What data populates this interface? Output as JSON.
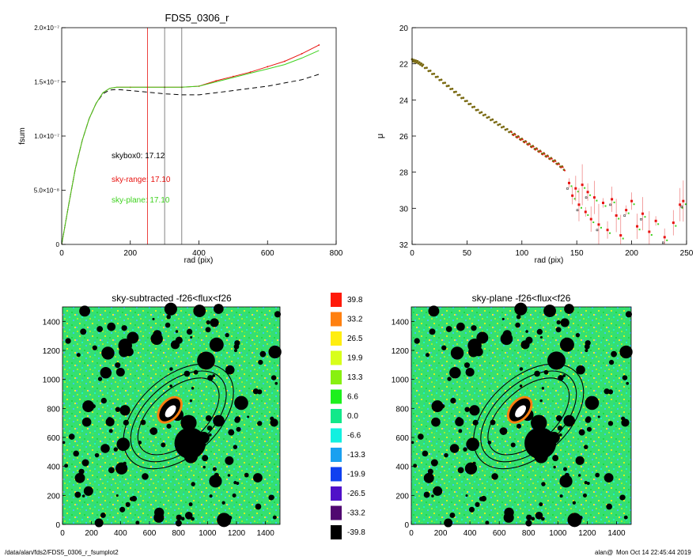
{
  "footer": {
    "path": "/data/alan/fds2/FDS5_0306_r_fsumplot2",
    "user": "alan@",
    "timestamp": "Mon Oct 14 22:45:44 2019"
  },
  "colors": {
    "black": "#000000",
    "red": "#e8120f",
    "green": "#3ed21e",
    "olive": "#7a6a12"
  },
  "chart_data": [
    {
      "type": "line",
      "title": "FDS5_0306_r",
      "xlabel": "rad (pix)",
      "ylabel": "fsum",
      "xlim": [
        0,
        800
      ],
      "ylim": [
        0,
        2e-07
      ],
      "xticks": [
        "0",
        "200",
        "400",
        "600",
        "800"
      ],
      "yticks": [
        "0",
        "5.0×10⁻⁸",
        "1.0×10⁻⁷",
        "1.5×10⁻⁷",
        "2.0×10⁻⁷"
      ],
      "vlines": [
        {
          "x": 250,
          "color": "red"
        },
        {
          "x": 300,
          "color": "black"
        },
        {
          "x": 350,
          "color": "black"
        }
      ],
      "annotations": [
        {
          "text": "skybox0: 17.12",
          "color": "black"
        },
        {
          "text": "sky-range: 17.10",
          "color": "red"
        },
        {
          "text": "sky-plane: 17.10",
          "color": "green"
        }
      ],
      "series": [
        {
          "color": "black",
          "dash": "dashed",
          "x": [
            0,
            20,
            40,
            60,
            80,
            100,
            120,
            140,
            160,
            180,
            200,
            250,
            300,
            350,
            400,
            450,
            500,
            550,
            600,
            650,
            700,
            750
          ],
          "y": [
            0,
            3.6e-08,
            7e-08,
            9.6e-08,
            1.16e-07,
            1.3e-07,
            1.39e-07,
            1.425e-07,
            1.43e-07,
            1.425e-07,
            1.42e-07,
            1.405e-07,
            1.39e-07,
            1.38e-07,
            1.38e-07,
            1.4e-07,
            1.42e-07,
            1.44e-07,
            1.46e-07,
            1.49e-07,
            1.52e-07,
            1.57e-07
          ]
        },
        {
          "color": "red",
          "dash": "solid",
          "x": [
            0,
            20,
            40,
            60,
            80,
            100,
            120,
            140,
            160,
            180,
            200,
            250,
            300,
            350,
            400,
            450,
            500,
            550,
            600,
            650,
            700,
            750
          ],
          "y": [
            0,
            3.6e-08,
            7e-08,
            9.6e-08,
            1.16e-07,
            1.3e-07,
            1.4e-07,
            1.44e-07,
            1.45e-07,
            1.45e-07,
            1.45e-07,
            1.45e-07,
            1.45e-07,
            1.45e-07,
            1.46e-07,
            1.51e-07,
            1.55e-07,
            1.59e-07,
            1.64e-07,
            1.69e-07,
            1.76e-07,
            1.84e-07
          ]
        },
        {
          "color": "green",
          "dash": "solid",
          "x": [
            0,
            20,
            40,
            60,
            80,
            100,
            120,
            140,
            160,
            180,
            200,
            250,
            300,
            350,
            400,
            450,
            500,
            550,
            600,
            650,
            700,
            750
          ],
          "y": [
            0,
            3.6e-08,
            7e-08,
            9.6e-08,
            1.16e-07,
            1.3e-07,
            1.4e-07,
            1.44e-07,
            1.45e-07,
            1.45e-07,
            1.45e-07,
            1.45e-07,
            1.45e-07,
            1.45e-07,
            1.46e-07,
            1.5e-07,
            1.54e-07,
            1.58e-07,
            1.62e-07,
            1.66e-07,
            1.72e-07,
            1.79e-07
          ]
        }
      ]
    },
    {
      "type": "scatter",
      "title": "",
      "xlabel": "rad (pix)",
      "ylabel": "μ",
      "xlim": [
        0,
        250
      ],
      "ylim": [
        32,
        20
      ],
      "xticks": [
        "0",
        "50",
        "100",
        "150",
        "200",
        "250"
      ],
      "yticks": [
        "20",
        "22",
        "24",
        "26",
        "28",
        "30",
        "32"
      ],
      "profile": {
        "x": [
          0,
          5,
          10,
          20,
          30,
          40,
          50,
          60,
          70,
          80,
          90,
          100,
          110,
          120,
          130,
          140
        ],
        "y": [
          21.8,
          21.9,
          22.1,
          22.6,
          23.1,
          23.6,
          24.1,
          24.6,
          25.0,
          25.4,
          25.8,
          26.2,
          26.6,
          27.0,
          27.4,
          27.9
        ]
      },
      "noisy_points": [
        {
          "x": 143,
          "y": 28.6
        },
        {
          "x": 146,
          "y": 29.3
        },
        {
          "x": 149,
          "y": 28.9
        },
        {
          "x": 152,
          "y": 29.8
        },
        {
          "x": 155,
          "y": 28.7
        },
        {
          "x": 158,
          "y": 30.2
        },
        {
          "x": 160,
          "y": 29.1
        },
        {
          "x": 163,
          "y": 30.6
        },
        {
          "x": 166,
          "y": 29.4
        },
        {
          "x": 170,
          "y": 30.9
        },
        {
          "x": 174,
          "y": 29.7
        },
        {
          "x": 178,
          "y": 31.2
        },
        {
          "x": 182,
          "y": 29.5
        },
        {
          "x": 186,
          "y": 30.4
        },
        {
          "x": 190,
          "y": 31.5
        },
        {
          "x": 195,
          "y": 30.1
        },
        {
          "x": 200,
          "y": 29.6
        },
        {
          "x": 205,
          "y": 31.0
        },
        {
          "x": 210,
          "y": 30.3
        },
        {
          "x": 216,
          "y": 31.3
        },
        {
          "x": 222,
          "y": 30.7
        },
        {
          "x": 230,
          "y": 31.6
        },
        {
          "x": 238,
          "y": 30.8
        },
        {
          "x": 244,
          "y": 29.8
        },
        {
          "x": 247,
          "y": 29.6
        }
      ]
    },
    {
      "type": "heatmap",
      "title": "sky-subtracted -f26<flux<f26",
      "xlim": [
        0,
        1500
      ],
      "ylim": [
        0,
        1500
      ],
      "xticks": [
        "0",
        "200",
        "400",
        "600",
        "800",
        "1000",
        "1200",
        "1400"
      ],
      "yticks": [
        "0",
        "200",
        "400",
        "600",
        "800",
        "1000",
        "1200",
        "1400"
      ]
    },
    {
      "type": "heatmap",
      "title": "sky-plane -f26<flux<f26",
      "xlim": [
        0,
        1500
      ],
      "ylim": [
        0,
        1500
      ],
      "xticks": [
        "0",
        "200",
        "400",
        "600",
        "800",
        "1000",
        "1200",
        "1400"
      ],
      "yticks": [
        "0",
        "200",
        "400",
        "600",
        "800",
        "1000",
        "1200",
        "1400"
      ]
    }
  ],
  "colorbar": {
    "entries": [
      {
        "label": "39.8",
        "color": "#ff1a0a"
      },
      {
        "label": "33.2",
        "color": "#ff8010"
      },
      {
        "label": "26.5",
        "color": "#ffee10"
      },
      {
        "label": "19.9",
        "color": "#d8ff1a"
      },
      {
        "label": "13.3",
        "color": "#88f010"
      },
      {
        "label": "6.6",
        "color": "#1cf01c"
      },
      {
        "label": "0.0",
        "color": "#12e88a"
      },
      {
        "label": "-6.6",
        "color": "#12f0e0"
      },
      {
        "label": "-13.3",
        "color": "#1aa0f0"
      },
      {
        "label": "-19.9",
        "color": "#1040f0"
      },
      {
        "label": "-26.5",
        "color": "#5010c8"
      },
      {
        "label": "-33.2",
        "color": "#500870"
      },
      {
        "label": "-39.8",
        "color": "#000000"
      }
    ]
  }
}
